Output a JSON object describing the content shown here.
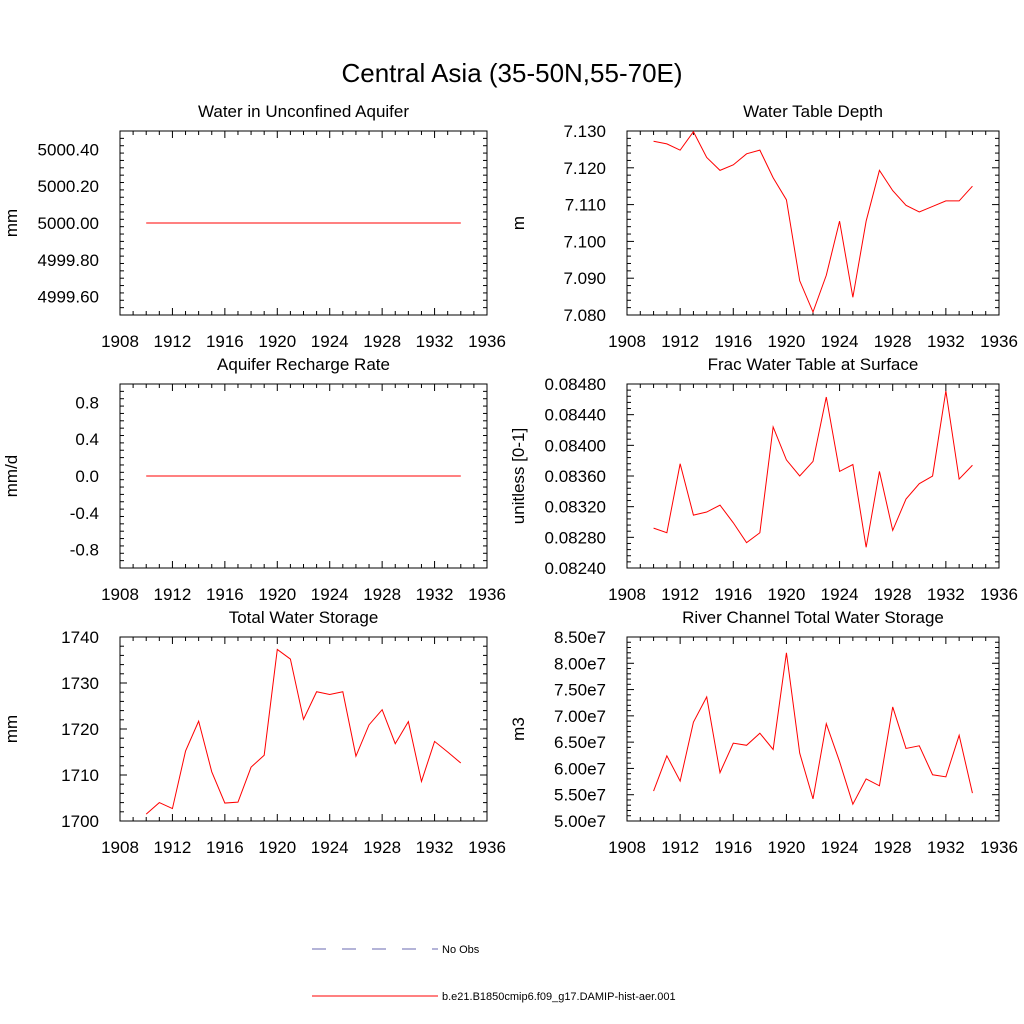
{
  "figure": {
    "title": "Central Asia (35-50N,55-70E)",
    "legend": [
      {
        "label": "No Obs",
        "style": "dashed",
        "color": "#6a6ab0"
      },
      {
        "label": "b.e21.B1850cmip6.f09_g17.DAMIP-hist-aer.001",
        "style": "solid",
        "color": "#ff0000"
      }
    ]
  },
  "chart_data": [
    {
      "type": "line",
      "title": "Water in Unconfined Aquifer",
      "ylabel": "mm",
      "xlim": [
        1908,
        1936
      ],
      "ylim": [
        4999.5,
        5000.5
      ],
      "xticks": [
        1908,
        1912,
        1916,
        1920,
        1924,
        1928,
        1932,
        1936
      ],
      "yticks": [
        4999.6,
        4999.8,
        5000.0,
        5000.2,
        5000.4
      ],
      "ytick_labels": [
        "4999.60",
        "4999.80",
        "5000.00",
        "5000.20",
        "5000.40"
      ],
      "series": [
        {
          "color": "#ff0000",
          "x": [
            1910,
            1911,
            1912,
            1913,
            1914,
            1915,
            1916,
            1917,
            1918,
            1919,
            1920,
            1921,
            1922,
            1923,
            1924,
            1925,
            1926,
            1927,
            1928,
            1929,
            1930,
            1931,
            1932,
            1933,
            1934
          ],
          "y": [
            5000,
            5000,
            5000,
            5000,
            5000,
            5000,
            5000,
            5000,
            5000,
            5000,
            5000,
            5000,
            5000,
            5000,
            5000,
            5000,
            5000,
            5000,
            5000,
            5000,
            5000,
            5000,
            5000,
            5000,
            5000
          ]
        }
      ]
    },
    {
      "type": "line",
      "title": "Water Table Depth",
      "ylabel": "m",
      "xlim": [
        1908,
        1936
      ],
      "ylim": [
        7.08,
        7.13
      ],
      "xticks": [
        1908,
        1912,
        1916,
        1920,
        1924,
        1928,
        1932,
        1936
      ],
      "yticks": [
        7.08,
        7.09,
        7.1,
        7.11,
        7.12,
        7.13
      ],
      "ytick_labels": [
        "7.080",
        "7.090",
        "7.100",
        "7.110",
        "7.120",
        "7.130"
      ],
      "series": [
        {
          "color": "#ff0000",
          "x": [
            1910,
            1911,
            1912,
            1913,
            1914,
            1915,
            1916,
            1917,
            1918,
            1919,
            1920,
            1921,
            1922,
            1923,
            1924,
            1925,
            1926,
            1927,
            1928,
            1929,
            1930,
            1931,
            1932,
            1933,
            1934
          ],
          "y": [
            7.1272,
            7.1265,
            7.1248,
            7.1298,
            7.1228,
            7.1193,
            7.1208,
            7.1238,
            7.1248,
            7.1173,
            7.1113,
            7.0893,
            7.0808,
            7.0908,
            7.1055,
            7.0848,
            7.1055,
            7.1193,
            7.1138,
            7.1098,
            7.108,
            7.1095,
            7.111,
            7.111,
            7.115
          ]
        }
      ]
    },
    {
      "type": "line",
      "title": "Aquifer Recharge Rate",
      "ylabel": "mm/d",
      "xlim": [
        1908,
        1936
      ],
      "ylim": [
        -1.0,
        1.0
      ],
      "xticks": [
        1908,
        1912,
        1916,
        1920,
        1924,
        1928,
        1932,
        1936
      ],
      "yticks": [
        -0.8,
        -0.4,
        0.0,
        0.4,
        0.8
      ],
      "ytick_labels": [
        "-0.8",
        "-0.4",
        "0.0",
        "0.4",
        "0.8"
      ],
      "series": [
        {
          "color": "#ff0000",
          "x": [
            1910,
            1911,
            1912,
            1913,
            1914,
            1915,
            1916,
            1917,
            1918,
            1919,
            1920,
            1921,
            1922,
            1923,
            1924,
            1925,
            1926,
            1927,
            1928,
            1929,
            1930,
            1931,
            1932,
            1933,
            1934
          ],
          "y": [
            0,
            0,
            0,
            0,
            0,
            0,
            0,
            0,
            0,
            0,
            0,
            0,
            0,
            0,
            0,
            0,
            0,
            0,
            0,
            0,
            0,
            0,
            0,
            0,
            0
          ]
        }
      ]
    },
    {
      "type": "line",
      "title": "Frac Water Table at Surface",
      "ylabel": "unitless [0-1]",
      "xlim": [
        1908,
        1936
      ],
      "ylim": [
        0.0824,
        0.0848
      ],
      "xticks": [
        1908,
        1912,
        1916,
        1920,
        1924,
        1928,
        1932,
        1936
      ],
      "yticks": [
        0.0824,
        0.0828,
        0.0832,
        0.0836,
        0.084,
        0.0844,
        0.0848
      ],
      "ytick_labels": [
        "0.08240",
        "0.08280",
        "0.08320",
        "0.08360",
        "0.08400",
        "0.08440",
        "0.08480"
      ],
      "series": [
        {
          "color": "#ff0000",
          "x": [
            1910,
            1911,
            1912,
            1913,
            1914,
            1915,
            1916,
            1917,
            1918,
            1919,
            1920,
            1921,
            1922,
            1923,
            1924,
            1925,
            1926,
            1927,
            1928,
            1929,
            1930,
            1931,
            1932,
            1933,
            1934
          ],
          "y": [
            0.08292,
            0.08286,
            0.08376,
            0.08309,
            0.08313,
            0.08322,
            0.08299,
            0.08273,
            0.08286,
            0.08424,
            0.08381,
            0.0836,
            0.08379,
            0.08463,
            0.08366,
            0.08375,
            0.08267,
            0.08366,
            0.08289,
            0.0833,
            0.0835,
            0.0836,
            0.08471,
            0.08356,
            0.08374
          ]
        }
      ]
    },
    {
      "type": "line",
      "title": "Total Water Storage",
      "ylabel": "mm",
      "xlim": [
        1908,
        1936
      ],
      "ylim": [
        1700,
        1740
      ],
      "xticks": [
        1908,
        1912,
        1916,
        1920,
        1924,
        1928,
        1932,
        1936
      ],
      "yticks": [
        1700,
        1710,
        1720,
        1730,
        1740
      ],
      "ytick_labels": [
        "1700",
        "1710",
        "1720",
        "1730",
        "1740"
      ],
      "series": [
        {
          "color": "#ff0000",
          "x": [
            1910,
            1911,
            1912,
            1913,
            1914,
            1915,
            1916,
            1917,
            1918,
            1919,
            1920,
            1921,
            1922,
            1923,
            1924,
            1925,
            1926,
            1927,
            1928,
            1929,
            1930,
            1931,
            1932,
            1933,
            1934
          ],
          "y": [
            1701.5,
            1704.0,
            1702.7,
            1715.2,
            1721.7,
            1710.7,
            1703.9,
            1704.1,
            1711.7,
            1714.3,
            1737.3,
            1735.2,
            1722.1,
            1728.1,
            1727.5,
            1728.1,
            1714.1,
            1720.9,
            1724.2,
            1716.8,
            1721.6,
            1708.6,
            1717.3,
            1715.0,
            1712.6
          ]
        }
      ]
    },
    {
      "type": "line",
      "title": "River Channel Total Water Storage",
      "ylabel": "m3",
      "xlim": [
        1908,
        1936
      ],
      "ylim": [
        50000000,
        85000000
      ],
      "xticks": [
        1908,
        1912,
        1916,
        1920,
        1924,
        1928,
        1932,
        1936
      ],
      "yticks": [
        50000000,
        55000000,
        60000000,
        65000000,
        70000000,
        75000000,
        80000000,
        85000000
      ],
      "ytick_labels": [
        "5.00e7",
        "5.50e7",
        "6.00e7",
        "6.50e7",
        "7.00e7",
        "7.50e7",
        "8.00e7",
        "8.50e7"
      ],
      "series": [
        {
          "color": "#ff0000",
          "x": [
            1910,
            1911,
            1912,
            1913,
            1914,
            1915,
            1916,
            1917,
            1918,
            1919,
            1920,
            1921,
            1922,
            1923,
            1924,
            1925,
            1926,
            1927,
            1928,
            1929,
            1930,
            1931,
            1932,
            1933,
            1934
          ],
          "y": [
            55700000,
            62400000,
            57600000,
            68800000,
            73600000,
            59200000,
            64800000,
            64400000,
            66700000,
            63600000,
            82000000,
            62900000,
            54200000,
            68500000,
            61300000,
            53200000,
            58000000,
            56700000,
            71700000,
            63800000,
            64300000,
            58800000,
            58400000,
            66300000,
            55300000
          ]
        }
      ]
    }
  ]
}
